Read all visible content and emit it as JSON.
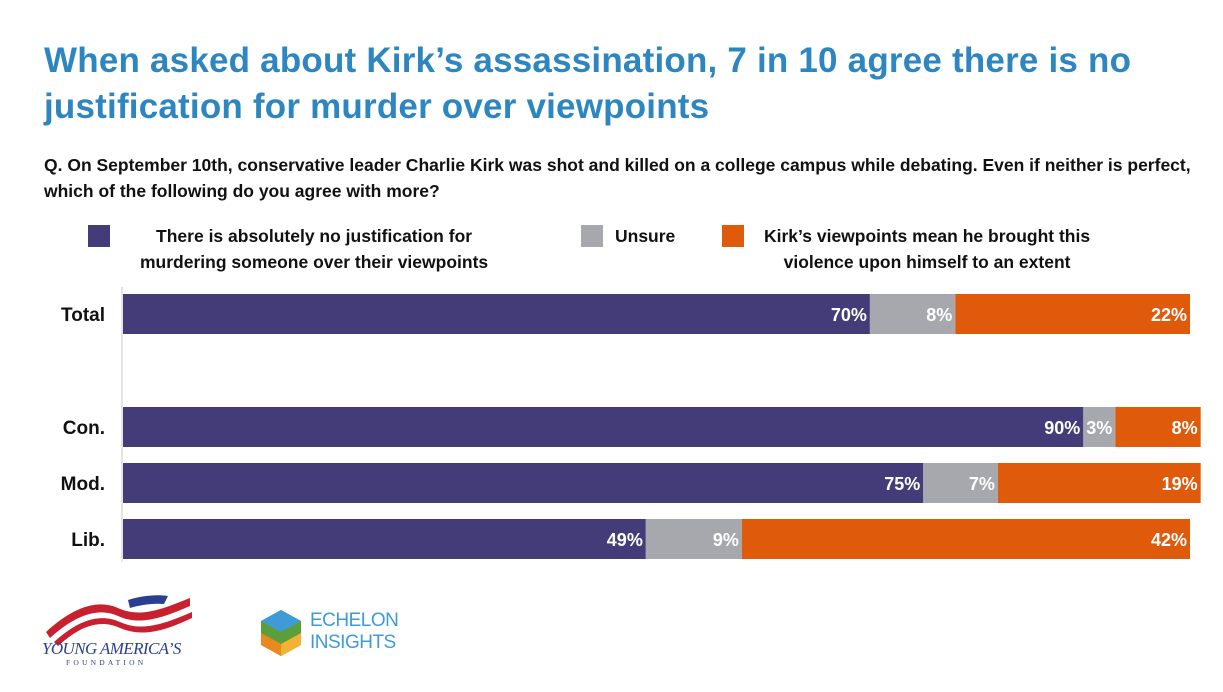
{
  "title": "When asked about Kirk’s assassination, 7 in 10 agree there is no justification for murder over viewpoints",
  "question": "Q. On September 10th, conservative leader Charlie Kirk was shot and killed on a college campus while debating. Even if neither is perfect, which of the following do you agree with more?",
  "colors": {
    "title": "#2e86c1",
    "no_justification": "#443c78",
    "unsure": "#a6a8ae",
    "brought_upon": "#e05a0c"
  },
  "legend": [
    {
      "label_line1": "There is absolutely no justification for",
      "label_line2": "murdering someone over their viewpoints",
      "color": "#443c78"
    },
    {
      "label_line1": "Unsure",
      "label_line2": "",
      "color": "#a6a8ae"
    },
    {
      "label_line1": "Kirk’s viewpoints mean he brought this",
      "label_line2": "violence upon himself to an extent",
      "color": "#e05a0c"
    }
  ],
  "chart_data": {
    "type": "bar",
    "orientation": "horizontal",
    "stacked": true,
    "categories": [
      "Total",
      "Con.",
      "Mod.",
      "Lib."
    ],
    "series": [
      {
        "name": "There is absolutely no justification for murdering someone over their viewpoints",
        "values": [
          70,
          90,
          75,
          49
        ],
        "labels": [
          "70%",
          "90%",
          "75%",
          "49%"
        ],
        "color": "#443c78"
      },
      {
        "name": "Unsure",
        "values": [
          8,
          3,
          7,
          9
        ],
        "labels": [
          "8%",
          "3%",
          "7%",
          "9%"
        ],
        "color": "#a6a8ae"
      },
      {
        "name": "Kirk’s viewpoints mean he brought this violence upon himself to an extent",
        "values": [
          22,
          8,
          19,
          42
        ],
        "labels": [
          "22%",
          "8%",
          "19%",
          "42%"
        ],
        "color": "#e05a0c"
      }
    ],
    "xlim": [
      0,
      100
    ],
    "grid": false,
    "legend_position": "top"
  },
  "logos": {
    "yaf_line1": "YOUNG AMERICA’S",
    "yaf_line2": "FOUNDATION",
    "echelon_line1": "ECHELON",
    "echelon_line2": "INSIGHTS"
  }
}
